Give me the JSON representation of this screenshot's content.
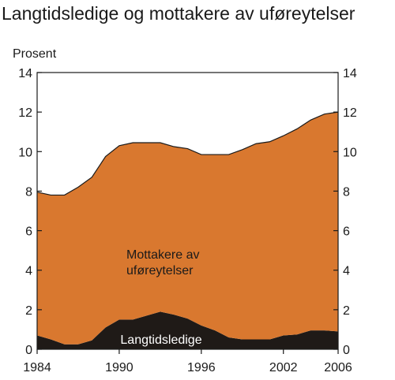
{
  "chart_data": {
    "type": "area",
    "title": "Langtidsledige og mottakere av uføreytelser",
    "ylabel": "Prosent",
    "ylim": [
      0,
      14
    ],
    "yticks": [
      0,
      2,
      4,
      6,
      8,
      10,
      12,
      14
    ],
    "xlim": [
      1984,
      2006
    ],
    "xticks": [
      1984,
      1990,
      1996,
      2002,
      2006
    ],
    "stacked": true,
    "grid": false,
    "x": [
      1984,
      1985,
      1986,
      1987,
      1988,
      1989,
      1990,
      1991,
      1992,
      1993,
      1994,
      1995,
      1996,
      1997,
      1998,
      1999,
      2000,
      2001,
      2002,
      2003,
      2004,
      2005,
      2006
    ],
    "series": [
      {
        "name": "Langtidsledige",
        "color": "#1f1a17",
        "values": [
          0.7,
          0.5,
          0.25,
          0.25,
          0.45,
          1.1,
          1.5,
          1.5,
          1.7,
          1.9,
          1.75,
          1.55,
          1.2,
          0.95,
          0.6,
          0.5,
          0.5,
          0.5,
          0.7,
          0.75,
          0.95,
          0.95,
          0.9
        ]
      },
      {
        "name": "Mottakere av uføreytelser",
        "label_lines": [
          "Mottakere av",
          "uføreytelser"
        ],
        "color": "#d9782f",
        "values": [
          7.25,
          7.3,
          7.55,
          7.95,
          8.25,
          8.65,
          8.8,
          8.95,
          8.75,
          8.55,
          8.5,
          8.6,
          8.65,
          8.9,
          9.25,
          9.6,
          9.9,
          10.0,
          10.1,
          10.4,
          10.65,
          10.95,
          11.1
        ]
      }
    ]
  }
}
